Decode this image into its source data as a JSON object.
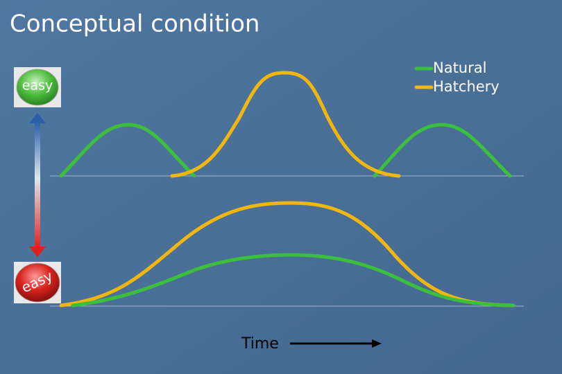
{
  "title": "Conceptual condition",
  "legend": [
    {
      "label": "Natural",
      "color": "#3cbf3c"
    },
    {
      "label": "Hatchery",
      "color": "#f2b70f"
    }
  ],
  "buttons": {
    "top": "easy",
    "bottom": "easy"
  },
  "x_label": "Time"
}
